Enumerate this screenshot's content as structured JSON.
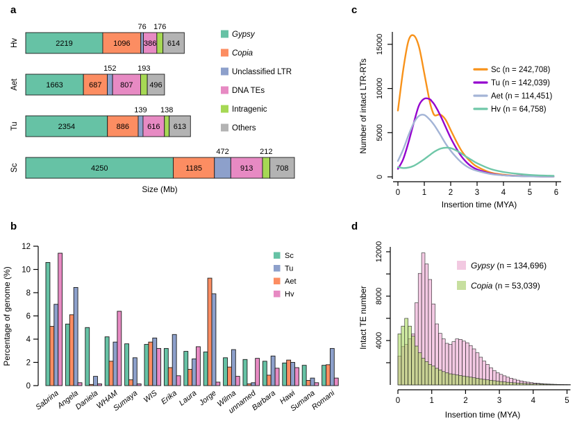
{
  "panel_letters": {
    "a": "a",
    "b": "b",
    "c": "c",
    "d": "d"
  },
  "chart_data": [
    {
      "id": "a",
      "type": "bar",
      "subtype": "stacked-horizontal",
      "xlabel": "Size (Mb)",
      "unit": "Mb",
      "segments": [
        "Gypsy",
        "Copia",
        "Unclassified LTR",
        "DNA TEs",
        "Intragenic",
        "Others"
      ],
      "segment_colors": [
        "#66C2A5",
        "#FC8D62",
        "#8DA0CB",
        "#E78AC3",
        "#A6D854",
        "#B3B3B3"
      ],
      "segment_italic": [
        true,
        true,
        false,
        false,
        false,
        false
      ],
      "above_label_indices": [
        2,
        4
      ],
      "rows": [
        {
          "label": "Hv",
          "values": [
            2219,
            1096,
            76,
            386,
            176,
            614
          ]
        },
        {
          "label": "Aet",
          "values": [
            1663,
            687,
            152,
            807,
            193,
            496
          ]
        },
        {
          "label": "Tu",
          "values": [
            2354,
            886,
            139,
            616,
            138,
            613
          ]
        },
        {
          "label": "Sc",
          "values": [
            4250,
            1185,
            472,
            913,
            212,
            708
          ]
        }
      ],
      "legend_position": "right"
    },
    {
      "id": "b",
      "type": "bar",
      "subtype": "grouped-vertical",
      "ylabel": "Percentage of genome (%)",
      "ylim": [
        0,
        12
      ],
      "yticks": [
        0,
        2,
        4,
        6,
        8,
        10,
        12
      ],
      "grid": false,
      "categories": [
        "Sabrina",
        "Angela",
        "Daniela",
        "WHAM",
        "Sumaya",
        "WIS",
        "Erika",
        "Laura",
        "Jorge",
        "Wilma",
        "unnamed",
        "Barbara",
        "Hawi",
        "Sumana",
        "Romani"
      ],
      "highlighted_categories": [
        "Daniela",
        "Sumaya",
        "Sumana"
      ],
      "highlight_color": "#3D6CE8",
      "series": [
        {
          "name": "Sc",
          "color": "#66C2A5",
          "values": [
            10.6,
            5.3,
            5.0,
            4.2,
            3.6,
            3.55,
            3.2,
            2.95,
            2.9,
            2.4,
            2.25,
            2.1,
            1.95,
            1.75,
            1.75
          ]
        },
        {
          "name": "Aet",
          "color": "#FC8D62",
          "values": [
            5.1,
            6.1,
            0.1,
            2.1,
            0.5,
            3.75,
            1.55,
            1.4,
            9.25,
            1.6,
            0.15,
            0.9,
            2.2,
            0.45,
            1.8
          ]
        },
        {
          "name": "Tu",
          "color": "#8DA0CB",
          "values": [
            7.0,
            8.45,
            0.8,
            3.75,
            2.4,
            4.1,
            4.4,
            2.3,
            7.9,
            3.1,
            0.25,
            2.55,
            2.0,
            0.65,
            3.2
          ]
        },
        {
          "name": "Hv",
          "color": "#E78AC3",
          "values": [
            11.4,
            0.25,
            0.15,
            6.4,
            0.15,
            3.2,
            0.85,
            3.35,
            0.3,
            0.8,
            2.35,
            1.5,
            1.55,
            0.25,
            0.65
          ]
        }
      ],
      "legend_order": [
        "Sc",
        "Tu",
        "Aet",
        "Hv"
      ],
      "legend_position": "top-right"
    },
    {
      "id": "c",
      "type": "line",
      "xlabel": "Insertion time (MYA)",
      "ylabel": "Number of intact LTR-RTs",
      "xlim": [
        0,
        6
      ],
      "ylim": [
        0,
        16500
      ],
      "xticks": [
        0,
        1,
        2,
        3,
        4,
        5,
        6
      ],
      "yticks": [
        0,
        5000,
        10000,
        15000
      ],
      "grid": false,
      "x": [
        0,
        0.2,
        0.4,
        0.6,
        0.8,
        1.0,
        1.2,
        1.3,
        1.4,
        1.6,
        1.8,
        2.0,
        2.2,
        2.4,
        2.6,
        2.8,
        3.0,
        3.5,
        4.0,
        4.5,
        5.0,
        5.5,
        5.9
      ],
      "series": [
        {
          "name": "Sc (n = 242,708)",
          "color": "#F8921A",
          "y": [
            7500,
            12100,
            15400,
            16000,
            14700,
            11700,
            8600,
            7500,
            6950,
            7050,
            6500,
            5300,
            4100,
            3000,
            2200,
            1600,
            1150,
            500,
            250,
            120,
            60,
            40,
            30
          ]
        },
        {
          "name": "Tu (n = 142,039)",
          "color": "#9403CE",
          "y": [
            900,
            2000,
            3900,
            6100,
            8100,
            8850,
            8800,
            8500,
            8100,
            7000,
            5700,
            4400,
            3300,
            2350,
            1650,
            1150,
            850,
            380,
            180,
            100,
            60,
            40,
            30
          ]
        },
        {
          "name": "Aet (n = 114,451)",
          "color": "#A3B4D6",
          "y": [
            1800,
            3100,
            4700,
            6100,
            6900,
            7000,
            6500,
            6150,
            5750,
            4800,
            3800,
            2950,
            2250,
            1650,
            1200,
            880,
            680,
            330,
            170,
            90,
            55,
            40,
            30
          ]
        },
        {
          "name": "Hv (n = 64,758)",
          "color": "#6FC7A8",
          "y": [
            1100,
            1000,
            1050,
            1250,
            1600,
            2000,
            2450,
            2680,
            2880,
            3180,
            3300,
            3250,
            3000,
            2650,
            2250,
            1900,
            1550,
            900,
            550,
            350,
            220,
            150,
            120
          ]
        }
      ],
      "legend_position": "right-inside"
    },
    {
      "id": "d",
      "type": "histogram",
      "xlabel": "Insertion time (MYA)",
      "ylabel": "Intact TE number",
      "xlim": [
        0,
        5.1
      ],
      "ylim": [
        0,
        12400
      ],
      "xticks": [
        0,
        1,
        2,
        3,
        4,
        5
      ],
      "yticks_labeled": [
        4000,
        8000,
        12000
      ],
      "ytick_minor_step": 2000,
      "bin_width": 0.1,
      "series": [
        {
          "genus": "Gypsy",
          "rest": " (n = 134,696)",
          "fill": "rgba(231,138,195,0.45)",
          "legend_fill": "#F2C9E1",
          "values": [
            2600,
            3450,
            3650,
            4150,
            4600,
            7400,
            10050,
            11900,
            10900,
            9500,
            7300,
            5500,
            4650,
            4150,
            3750,
            3650,
            3900,
            4150,
            4100,
            3950,
            3800,
            3550,
            3250,
            2900,
            2500,
            2150,
            1850,
            1550,
            1300,
            1100,
            950,
            820,
            700,
            600,
            510,
            430,
            360,
            300,
            250,
            210,
            170,
            140,
            115,
            95,
            80,
            65,
            55,
            45,
            38,
            32,
            27
          ]
        },
        {
          "genus": "Copia",
          "rest": " (n = 53,039)",
          "fill": "rgba(166,216,84,0.55)",
          "legend_fill": "#C7DF9F",
          "values": [
            4600,
            5300,
            6000,
            5300,
            4400,
            3500,
            2900,
            2400,
            2100,
            1850,
            1700,
            1500,
            1350,
            1200,
            1100,
            1000,
            950,
            900,
            850,
            800,
            750,
            700,
            650,
            600,
            550,
            500,
            460,
            420,
            380,
            340,
            300,
            270,
            240,
            210,
            190,
            170,
            150,
            130,
            115,
            100,
            90,
            80,
            70,
            62,
            55,
            48,
            42,
            37,
            32,
            28,
            25
          ]
        }
      ],
      "legend_position": "top-right-inside"
    }
  ]
}
